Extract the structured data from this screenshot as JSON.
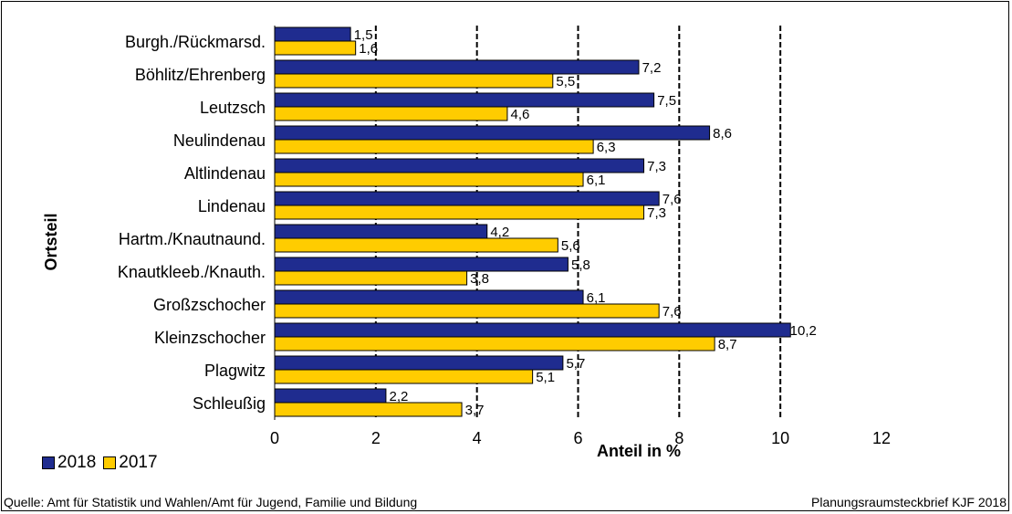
{
  "chart_data": {
    "type": "bar",
    "orientation": "horizontal",
    "categories": [
      "Burgh./Rückmarsd.",
      "Böhlitz/Ehrenberg",
      "Leutzsch",
      "Neulindenau",
      "Altlindenau",
      "Lindenau",
      "Hartm./Knautnaund.",
      "Knautkleeb./Knauth.",
      "Großzschocher",
      "Kleinzschocher",
      "Plagwitz",
      "Schleußig"
    ],
    "series": [
      {
        "name": "2018",
        "color": "#1f2c8f",
        "values": [
          1.5,
          7.2,
          7.5,
          8.6,
          7.3,
          7.6,
          4.2,
          5.8,
          6.1,
          10.2,
          5.7,
          2.2
        ],
        "labels": [
          "1,5",
          "7,2",
          "7,5",
          "8,6",
          "7,3",
          "7,6",
          "4,2",
          "5,8",
          "6,1",
          "10,2",
          "5,7",
          "2,2"
        ]
      },
      {
        "name": "2017",
        "color": "#ffcc00",
        "values": [
          1.6,
          5.5,
          4.6,
          6.3,
          6.1,
          7.3,
          5.6,
          3.8,
          7.6,
          8.7,
          5.1,
          3.7
        ],
        "labels": [
          "1,6",
          "5,5",
          "4,6",
          "6,3",
          "6,1",
          "7,3",
          "5,6",
          "3,8",
          "7,6",
          "8,7",
          "5,1",
          "3,7"
        ]
      }
    ],
    "xlabel": "Anteil in %",
    "ylabel": "Ortsteil",
    "xlim": [
      0,
      12
    ],
    "xticks": [
      "0",
      "2",
      "4",
      "6",
      "8",
      "10",
      "12"
    ],
    "grid": "vertical dashed",
    "legend_position": "bottom-left"
  },
  "footer": {
    "source": "Quelle: Amt für Statistik und Wahlen/Amt für Jugend, Familie und Bildung",
    "credit": "Planungsraumsteckbrief KJF 2018"
  }
}
